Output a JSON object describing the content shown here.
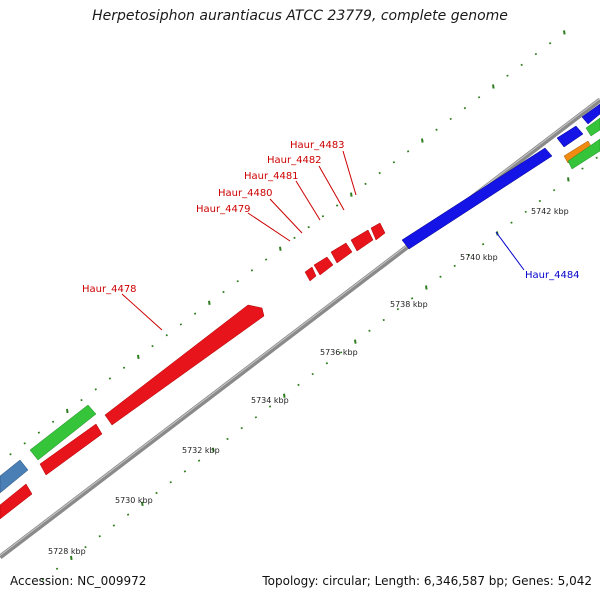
{
  "title": "Herpetosiphon aurantiacus ATCC 23779, complete genome",
  "accession": "Accession: NC_009972",
  "summary": "Topology: circular; Length: 6,346,587 bp; Genes: 5,042",
  "colors": {
    "backbone": "#8a8a8a",
    "tick": "#2e7d1e",
    "red": "#e8141c",
    "green": "#35c43a",
    "blue": "#1414e6",
    "steel": "#4a7fb5",
    "orange": "#f08a10",
    "label_red": "#cc0000",
    "label_blue": "#0000cc"
  },
  "kbp_ticks": [
    "5728 kbp",
    "5730 kbp",
    "5732 kbp",
    "5734 kbp",
    "5736 kbp",
    "5738 kbp",
    "5740 kbp",
    "5742 kbp"
  ],
  "gene_labels": [
    {
      "name": "Haur_4478",
      "color": "red"
    },
    {
      "name": "Haur_4479",
      "color": "red"
    },
    {
      "name": "Haur_4480",
      "color": "red"
    },
    {
      "name": "Haur_4481",
      "color": "red"
    },
    {
      "name": "Haur_4482",
      "color": "red"
    },
    {
      "name": "Haur_4483",
      "color": "red"
    },
    {
      "name": "Haur_4484",
      "color": "blue"
    }
  ]
}
